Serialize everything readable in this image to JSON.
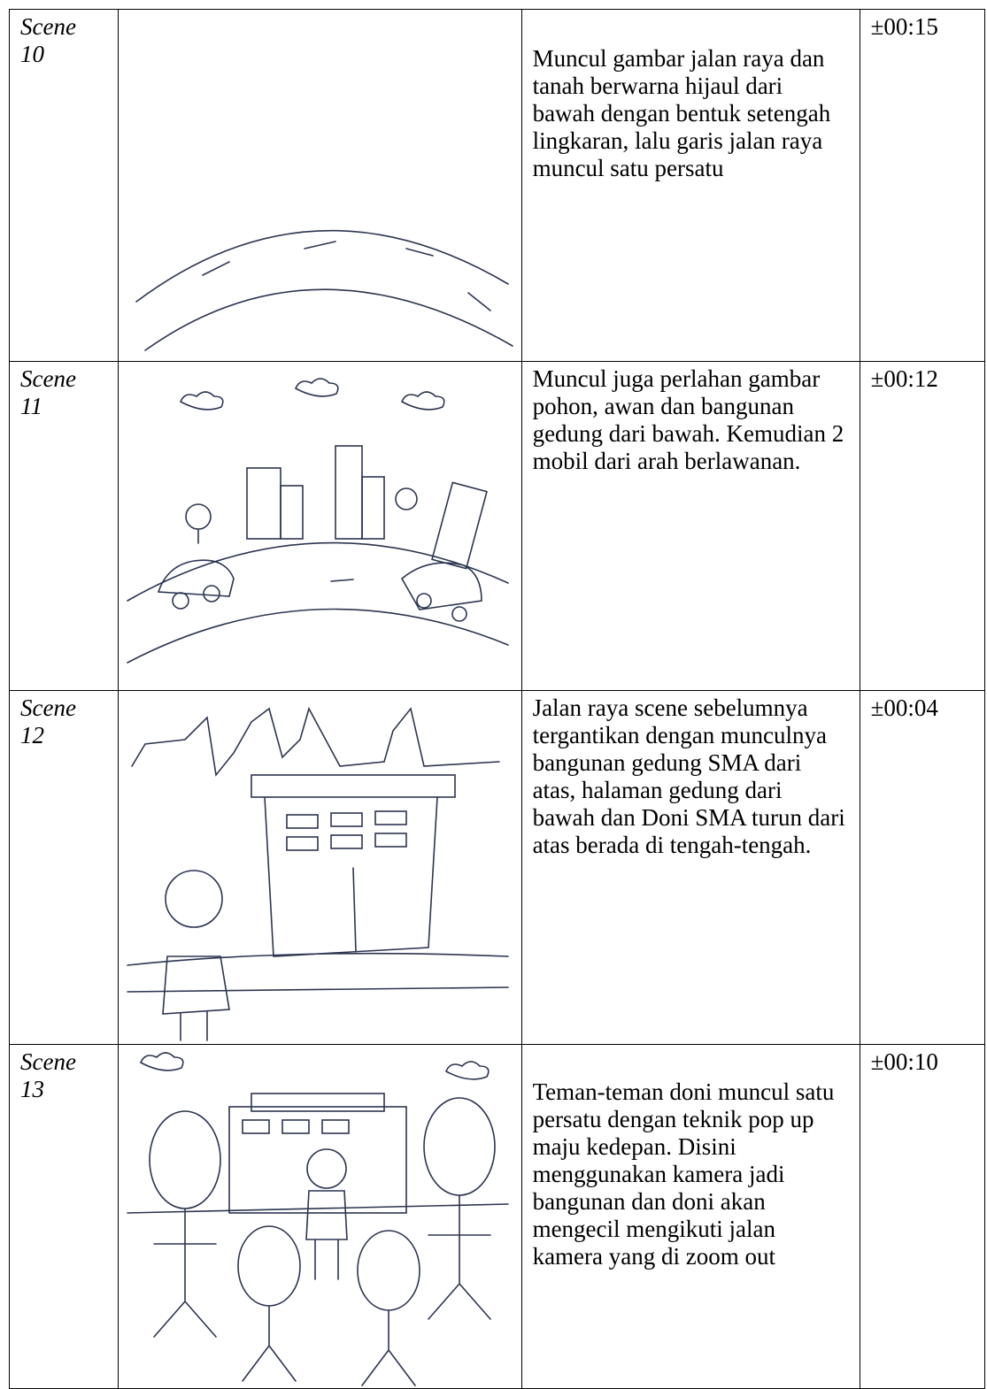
{
  "table": {
    "rows": [
      {
        "scene": "Scene 10",
        "description": "Muncul gambar jalan raya dan tanah berwarna hijaul dari bawah dengan bentuk setengah lingkaran, lalu garis jalan raya muncul satu persatu",
        "duration": "±00:15"
      },
      {
        "scene": "Scene 11",
        "description": "Muncul juga perlahan gambar pohon, awan dan bangunan gedung dari bawah. Kemudian 2 mobil dari arah berlawanan.",
        "duration": "±00:12"
      },
      {
        "scene": "Scene 12",
        "description": "Jalan raya scene sebelumnya tergantikan dengan munculnya bangunan gedung SMA dari atas, halaman gedung dari bawah dan Doni SMA turun dari atas berada di tengah-tengah.",
        "duration": "±00:04"
      },
      {
        "scene": "Scene 13",
        "description": "Teman-teman doni muncul satu persatu dengan teknik pop up maju kedepan. Disini menggunakan kamera jadi bangunan dan doni akan mengecil mengikuti jalan kamera yang di zoom out",
        "duration": "±00:10"
      }
    ]
  }
}
